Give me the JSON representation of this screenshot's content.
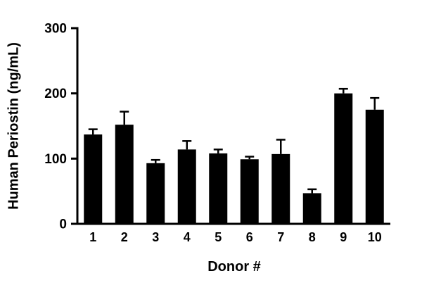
{
  "chart_data": {
    "type": "bar",
    "title": "",
    "xlabel": "Donor #",
    "ylabel": "Human Periostin (ng/mL)",
    "categories": [
      "1",
      "2",
      "3",
      "4",
      "5",
      "6",
      "7",
      "8",
      "9",
      "10"
    ],
    "values": [
      137,
      152,
      93,
      114,
      108,
      99,
      107,
      47,
      200,
      175
    ],
    "errors": [
      8,
      20,
      5,
      13,
      6,
      4,
      22,
      6,
      7,
      18
    ],
    "ylim": [
      0,
      300
    ],
    "yticks": [
      0,
      100,
      200,
      300
    ],
    "bar_color": "#000000",
    "axis_color": "#000000",
    "background_color": "#ffffff",
    "grid": false,
    "legend": null,
    "error_bars": "upper-only"
  }
}
